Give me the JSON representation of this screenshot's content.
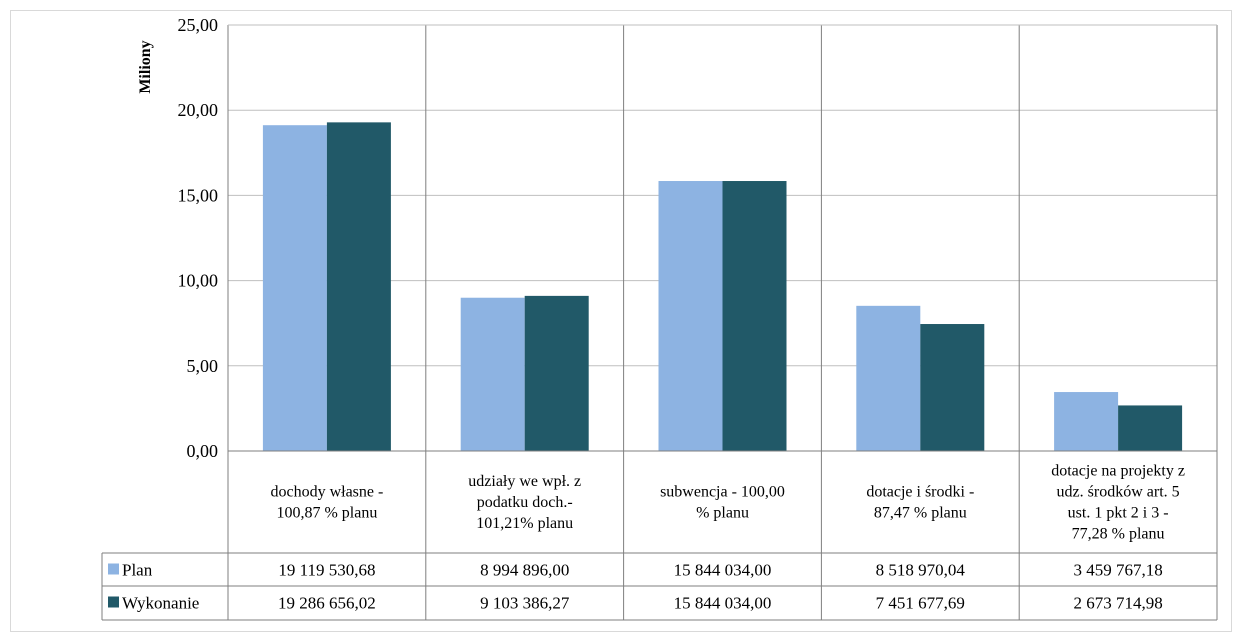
{
  "chart_data": {
    "type": "bar",
    "title": "",
    "ylabel": "Miliony",
    "ylim": [
      0,
      25
    ],
    "ytick_step": 5,
    "ytick_labels": [
      "0,00",
      "5,00",
      "10,00",
      "15,00",
      "20,00",
      "25,00"
    ],
    "grid": true,
    "legend": "data-table-left",
    "categories": [
      [
        "dochody własne -",
        "100,87 % planu"
      ],
      [
        "udziały we wpł. z",
        "podatku doch.-",
        "101,21% planu"
      ],
      [
        "subwencja - 100,00",
        "% planu"
      ],
      [
        "dotacje i środki -",
        "87,47 % planu"
      ],
      [
        "dotacje na projekty z",
        "udz. środków art. 5",
        "ust. 1 pkt 2 i 3 -",
        "77,28 % planu"
      ]
    ],
    "series": [
      {
        "name": "Plan",
        "color": "#8db3e2",
        "values": [
          19.11953068,
          8.994896,
          15.844034,
          8.51897004,
          3.45976718
        ],
        "labels": [
          "19 119 530,68",
          "8 994 896,00",
          "15 844 034,00",
          "8 518 970,04",
          "3 459 767,18"
        ]
      },
      {
        "name": "Wykonanie",
        "color": "#215968",
        "values": [
          19.28665602,
          9.10338627,
          15.844034,
          7.45167769,
          2.67371498
        ],
        "labels": [
          "19 286 656,02",
          "9 103 386,27",
          "15 844 034,00",
          "7 451 677,69",
          "2 673 714,98"
        ]
      }
    ]
  }
}
